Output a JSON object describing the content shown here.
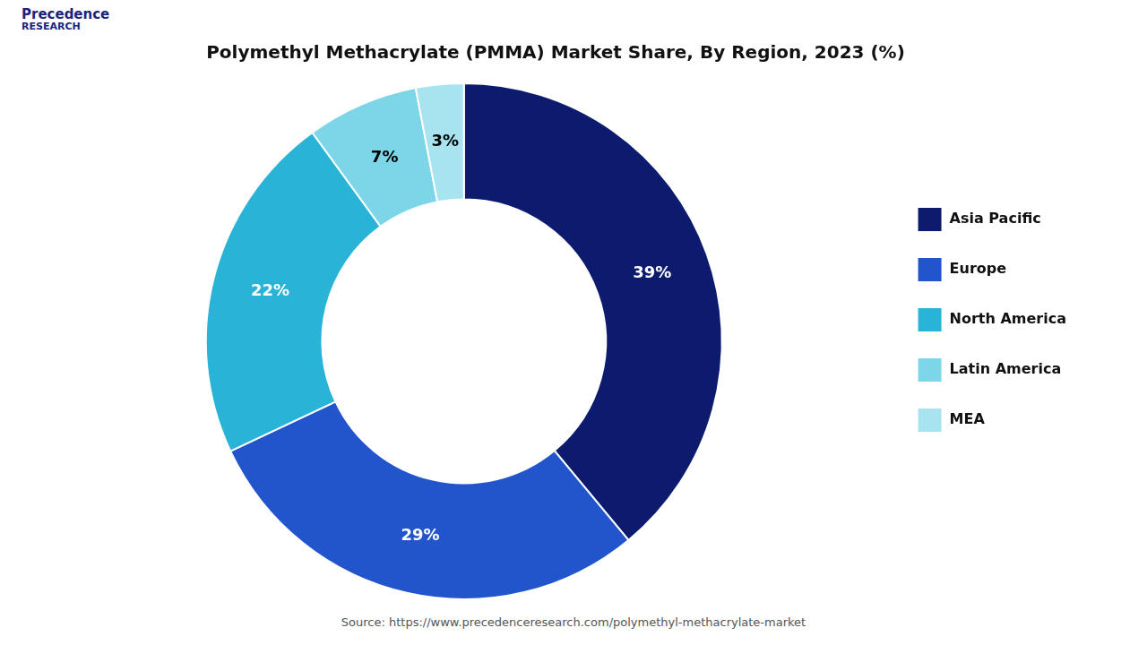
{
  "chart_data": {
    "type": "donut",
    "title": "Polymethyl Methacrylate (PMMA) Market Share, By Region, 2023 (%)",
    "categories": [
      "Asia Pacific",
      "Europe",
      "North America",
      "Latin America",
      "MEA"
    ],
    "values": [
      39,
      29,
      22,
      7,
      3
    ],
    "value_labels": [
      "39%",
      "29%",
      "22%",
      "7%",
      "3%"
    ],
    "colors": [
      "#0d1b6e",
      "#2255cc",
      "#29b3d6",
      "#7dd6e8",
      "#a8e4f0"
    ],
    "data_labels": true,
    "legend": "right",
    "annotations": [
      "Precedence",
      "RESEARCH",
      "Source: https://www.precedenceresearch.com/polymethyl-methacrylate-market"
    ]
  }
}
